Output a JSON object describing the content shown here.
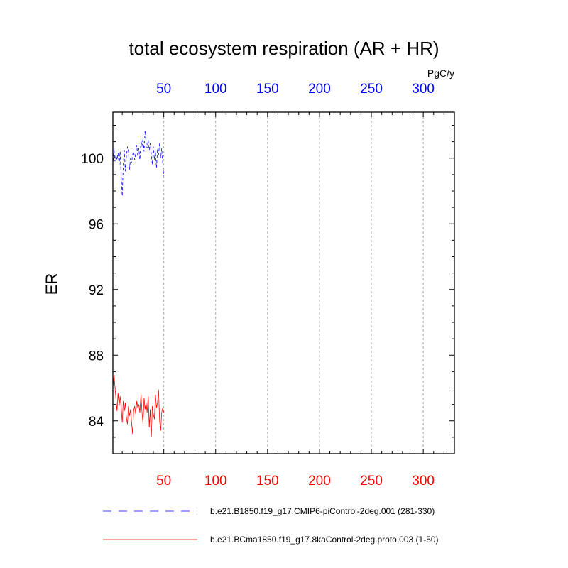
{
  "chart_data": {
    "type": "line",
    "title": "total ecosystem respiration (AR + HR)",
    "ylabel": "ER",
    "units": "PgC/y",
    "xlim": [
      1,
      330
    ],
    "ylim": [
      82,
      102.8
    ],
    "grid": "vertical dashed",
    "legend_position": "bottom",
    "x_ticks": [
      50,
      100,
      150,
      200,
      250,
      300
    ],
    "y_ticks": [
      84,
      88,
      92,
      96,
      100
    ],
    "top_axis_color": "#0000ff",
    "bottom_axis_color": "#ff0000",
    "series": [
      {
        "name": "b.e21.B1850.f19_g17.CMIP6-piControl-2deg.001 (281-330)",
        "color": "#0000ff",
        "dash": "dashed",
        "x": [
          1,
          2,
          3,
          4,
          5,
          6,
          7,
          8,
          9,
          10,
          11,
          12,
          13,
          14,
          15,
          16,
          17,
          18,
          19,
          20,
          21,
          22,
          23,
          24,
          25,
          26,
          27,
          28,
          29,
          30,
          31,
          32,
          33,
          34,
          35,
          36,
          37,
          38,
          39,
          40,
          41,
          42,
          43,
          44,
          45,
          46,
          47,
          48,
          49,
          50
        ],
        "y": [
          99.5,
          100.6,
          99.8,
          100.2,
          99.9,
          100.3,
          99.6,
          100.4,
          98.8,
          97.7,
          99.6,
          100.5,
          99.2,
          100.1,
          100.7,
          100.4,
          99.3,
          100.0,
          99.7,
          100.2,
          100.4,
          99.9,
          100.3,
          100.8,
          100.1,
          100.6,
          99.9,
          101.1,
          100.7,
          101.2,
          100.4,
          101.7,
          100.9,
          100.6,
          101.1,
          100.5,
          100.9,
          100.2,
          99.6,
          100.7,
          99.9,
          100.4,
          99.4,
          100.6,
          100.2,
          100.9,
          100.0,
          100.6,
          99.7,
          98.9
        ]
      },
      {
        "name": "b.e21.BCma1850.f19_g17.8kaControl-2deg.proto.003 (1-50)",
        "color": "#ff0000",
        "dash": "solid",
        "x": [
          1,
          2,
          3,
          4,
          5,
          6,
          7,
          8,
          9,
          10,
          11,
          12,
          13,
          14,
          15,
          16,
          17,
          18,
          19,
          20,
          21,
          22,
          23,
          24,
          25,
          26,
          27,
          28,
          29,
          30,
          31,
          32,
          33,
          34,
          35,
          36,
          37,
          38,
          39,
          40,
          41,
          42,
          43,
          44,
          45,
          46,
          47,
          48,
          49,
          50
        ],
        "y": [
          86.0,
          86.8,
          86.1,
          85.3,
          84.6,
          85.7,
          84.9,
          85.5,
          84.8,
          83.9,
          85.2,
          84.6,
          85.1,
          84.2,
          83.8,
          84.9,
          84.3,
          84.7,
          83.9,
          83.2,
          84.6,
          84.9,
          84.4,
          85.2,
          84.8,
          85.0,
          84.5,
          85.6,
          84.6,
          83.8,
          85.4,
          84.7,
          85.1,
          84.5,
          85.5,
          83.6,
          84.7,
          83.0,
          84.9,
          84.4,
          84.1,
          85.6,
          84.8,
          85.1,
          85.9,
          84.0,
          83.4,
          84.5,
          84.8,
          84.5
        ]
      }
    ]
  }
}
